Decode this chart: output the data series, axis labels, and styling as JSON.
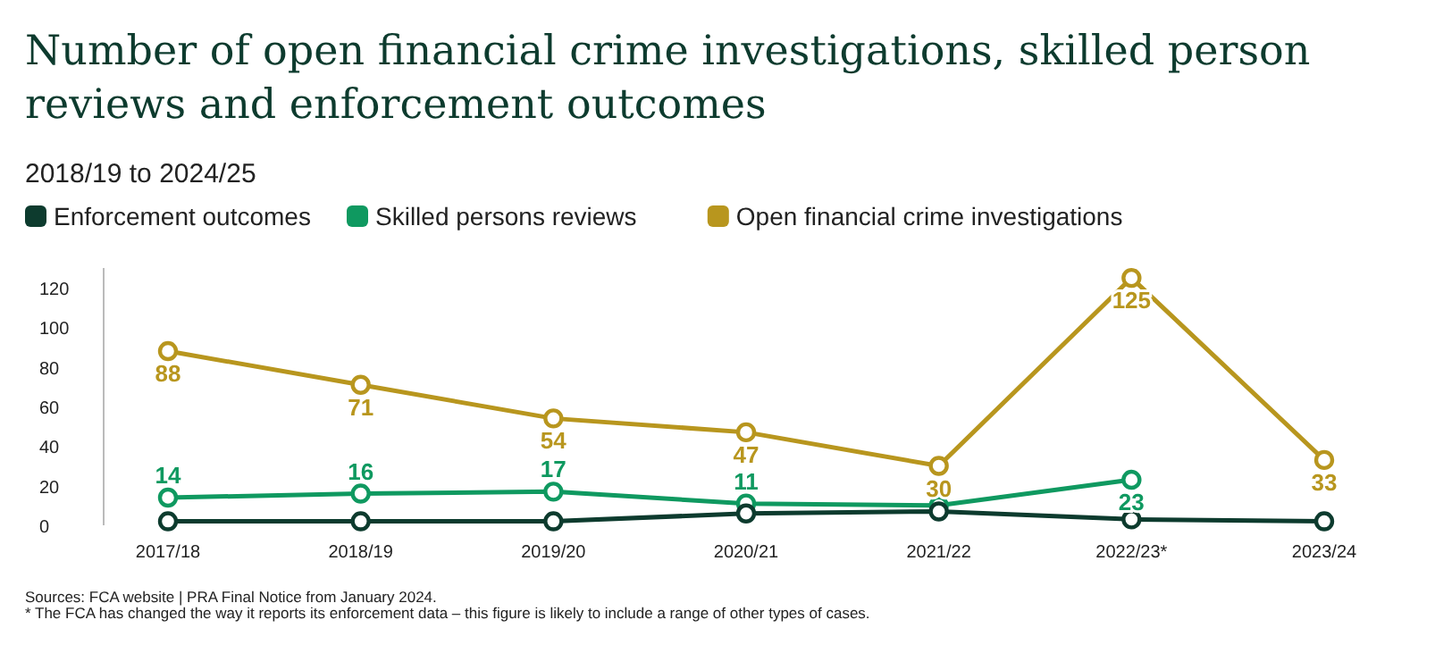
{
  "chart_data": {
    "type": "line",
    "title": "Number of open financial crime investigations, skilled person reviews and enforcement outcomes",
    "subtitle": "2018/19 to 2024/25",
    "categories": [
      "2017/18",
      "2018/19",
      "2019/20",
      "2020/21",
      "2021/22",
      "2022/23*",
      "2023/24"
    ],
    "series": [
      {
        "name": "Enforcement outcomes",
        "color": "#0d3b2e",
        "values": [
          2,
          2,
          2,
          6,
          7,
          3,
          2
        ]
      },
      {
        "name": "Skilled persons reviews",
        "color": "#0f9960",
        "values": [
          14,
          16,
          17,
          11,
          10,
          23,
          null
        ],
        "value_labels": [
          "14",
          "16",
          "17",
          "11",
          null,
          "23",
          null
        ]
      },
      {
        "name": "Open financial crime investigations",
        "color": "#b8961e",
        "values": [
          88,
          71,
          54,
          47,
          30,
          125,
          33
        ],
        "value_labels": [
          "88",
          "71",
          "54",
          "47",
          "30",
          "125",
          "33"
        ]
      }
    ],
    "ylim": [
      0,
      130
    ],
    "yticks": [
      0,
      20,
      40,
      60,
      80,
      100,
      120
    ],
    "grid": false,
    "legend": "top left",
    "marker": "circle",
    "line_style": "solid",
    "annotations": [
      "Sources: FCA website | PRA Final Notice from January 2024.",
      "* The FCA has changed the way it reports its enforcement data – this figure is likely to include a range of other types of cases."
    ]
  }
}
